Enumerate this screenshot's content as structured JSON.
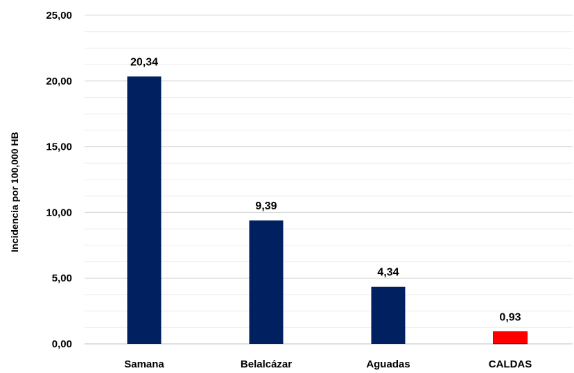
{
  "chart_data": {
    "type": "bar",
    "categories": [
      "Samana",
      "Belalcázar",
      "Aguadas",
      "CALDAS"
    ],
    "values": [
      20.34,
      9.39,
      4.34,
      0.93
    ],
    "value_labels": [
      "20,34",
      "9,39",
      "4,34",
      "0,93"
    ],
    "bar_colors": [
      "#002060",
      "#002060",
      "#002060",
      "#ff0000"
    ],
    "ylabel": "Incidencia por 100,000 HB",
    "ylim": [
      0,
      25
    ],
    "y_ticks": [
      0,
      5,
      10,
      15,
      20,
      25
    ],
    "y_tick_labels": [
      "0,00",
      "5,00",
      "10,00",
      "15,00",
      "20,00",
      "25,00"
    ],
    "grid": true,
    "minor_grid": true
  }
}
